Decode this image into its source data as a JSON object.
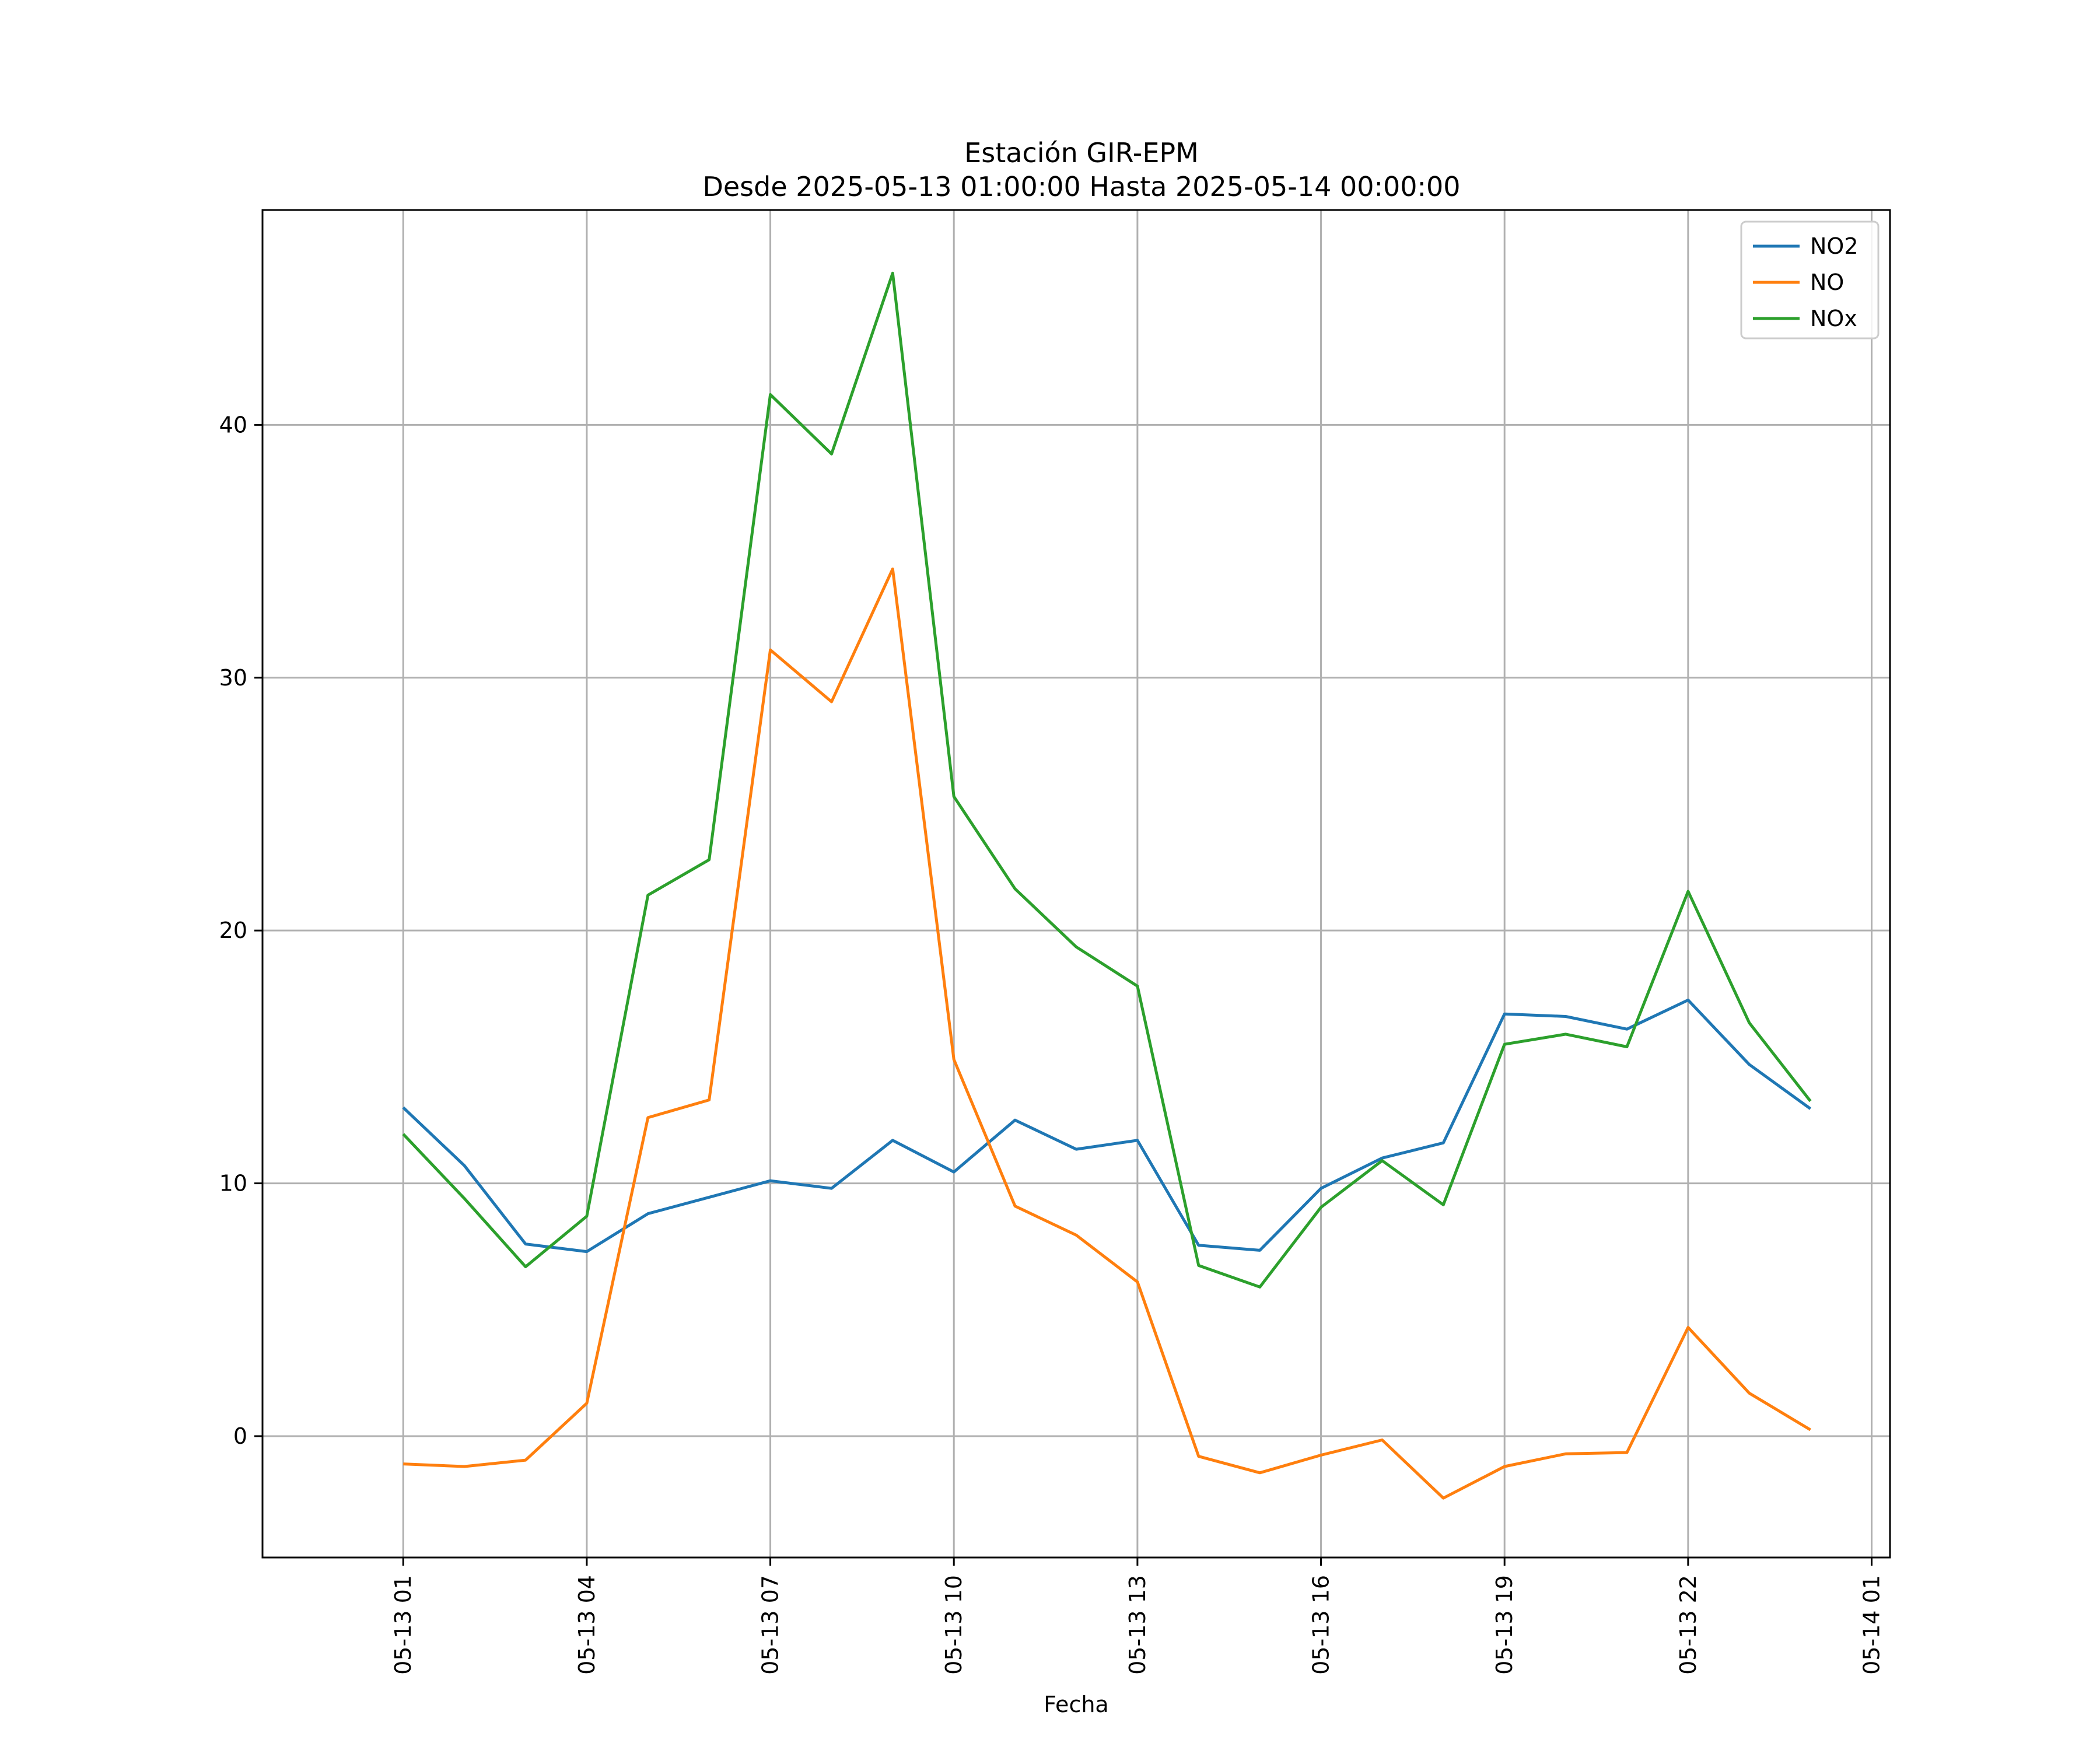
{
  "chart_data": {
    "type": "line",
    "title": "Estación GIR-EPM",
    "subtitle": "Desde 2025-05-13 01:00:00 Hasta 2025-05-14 00:00:00",
    "xlabel": "Fecha",
    "ylabel": "",
    "x": [
      "2025-05-13 01:00",
      "2025-05-13 02:00",
      "2025-05-13 03:00",
      "2025-05-13 04:00",
      "2025-05-13 05:00",
      "2025-05-13 06:00",
      "2025-05-13 07:00",
      "2025-05-13 08:00",
      "2025-05-13 09:00",
      "2025-05-13 10:00",
      "2025-05-13 11:00",
      "2025-05-13 12:00",
      "2025-05-13 13:00",
      "2025-05-13 14:00",
      "2025-05-13 15:00",
      "2025-05-13 16:00",
      "2025-05-13 17:00",
      "2025-05-13 18:00",
      "2025-05-13 19:00",
      "2025-05-13 20:00",
      "2025-05-13 21:00",
      "2025-05-13 22:00",
      "2025-05-13 23:00",
      "2025-05-14 00:00"
    ],
    "x_ticks": [
      "05-13 01",
      "05-13 04",
      "05-13 07",
      "05-13 10",
      "05-13 13",
      "05-13 16",
      "05-13 19",
      "05-13 22",
      "05-14 01"
    ],
    "x_tick_dates": [
      "2025-05-13 01:00",
      "2025-05-13 04:00",
      "2025-05-13 07:00",
      "2025-05-13 10:00",
      "2025-05-13 13:00",
      "2025-05-13 16:00",
      "2025-05-13 19:00",
      "2025-05-13 22:00",
      "2025-05-14 01:00"
    ],
    "xlim": [
      "2025-05-12 22:42",
      "2025-05-14 01:18"
    ],
    "y_ticks": [
      0,
      10,
      20,
      30,
      40
    ],
    "ylim": [
      -4.8,
      48.5
    ],
    "grid": true,
    "legend_position": "top-right",
    "series": [
      {
        "name": "NO2",
        "color": "#1f77b4",
        "values": [
          13.0,
          10.7,
          7.6,
          7.3,
          8.8,
          9.45,
          10.1,
          9.8,
          11.7,
          10.45,
          12.5,
          11.35,
          11.7,
          7.55,
          7.35,
          9.8,
          11.0,
          11.6,
          16.7,
          16.6,
          16.1,
          17.25,
          14.7,
          12.95
        ]
      },
      {
        "name": "NO",
        "color": "#ff7f0e",
        "values": [
          -1.1,
          -1.2,
          -0.95,
          1.3,
          12.6,
          13.3,
          31.1,
          29.05,
          34.3,
          14.9,
          9.1,
          7.95,
          6.1,
          -0.8,
          -1.45,
          -0.75,
          -0.15,
          -2.45,
          -1.2,
          -0.7,
          -0.65,
          4.3,
          1.7,
          0.25
        ]
      },
      {
        "name": "NOx",
        "color": "#2ca02c",
        "values": [
          11.95,
          9.4,
          6.7,
          8.7,
          21.4,
          22.8,
          41.2,
          38.85,
          46.0,
          25.3,
          21.65,
          19.35,
          17.8,
          6.75,
          5.9,
          9.05,
          10.9,
          9.15,
          15.5,
          15.9,
          15.4,
          21.55,
          16.35,
          13.25
        ]
      }
    ]
  }
}
